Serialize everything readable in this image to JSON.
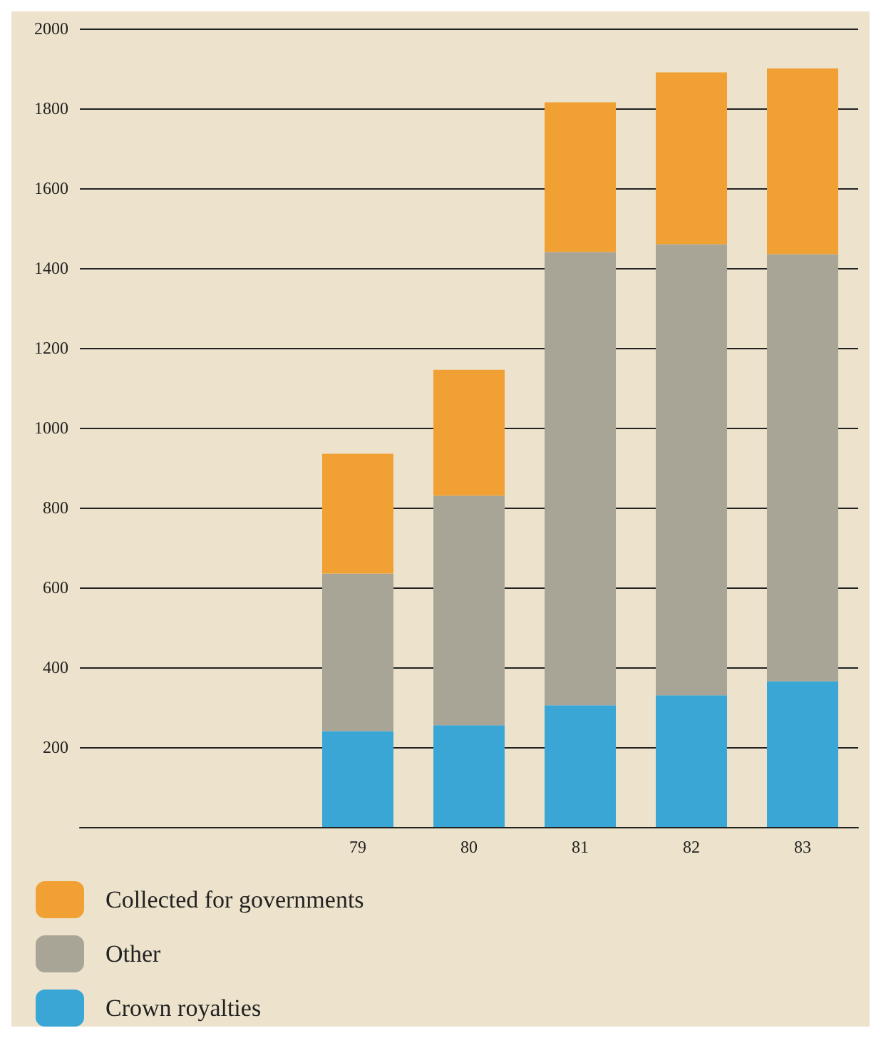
{
  "chart_data": {
    "type": "bar",
    "stacked": true,
    "categories": [
      null,
      null,
      "79",
      "80",
      "81",
      "82",
      "83"
    ],
    "series": [
      {
        "name": "Crown royalties",
        "color": "#3aa6d6",
        "values": [
          null,
          null,
          240,
          255,
          305,
          330,
          365
        ]
      },
      {
        "name": "Other",
        "color": "#a9a596",
        "values": [
          null,
          null,
          395,
          575,
          1135,
          1130,
          1070
        ]
      },
      {
        "name": "Collected for governments",
        "color": "#f1a133",
        "values": [
          null,
          null,
          300,
          315,
          375,
          430,
          465
        ]
      }
    ],
    "ylim": [
      0,
      2000
    ],
    "yticks": [
      200,
      400,
      600,
      800,
      1000,
      1200,
      1400,
      1600,
      1800,
      2000
    ],
    "grid": "y",
    "legend": "bottom"
  }
}
